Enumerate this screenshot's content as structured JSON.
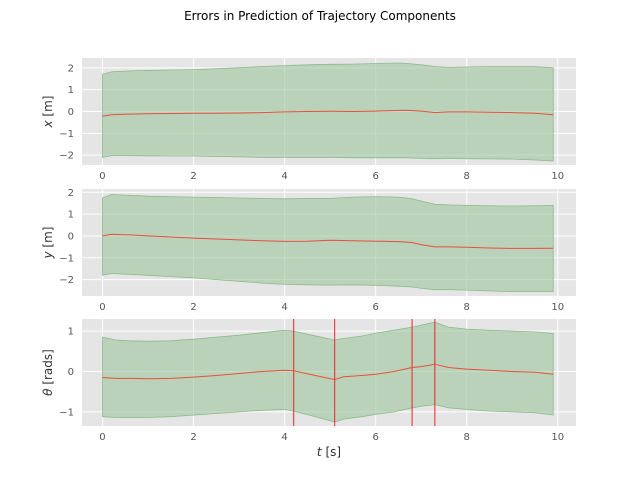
{
  "chart_data": [
    {
      "type": "area",
      "title": "Errors in Prediction of Trajectory Components",
      "ylabel_var": "x",
      "ylabel_unit": " [m]",
      "xlabel": "",
      "xlim": [
        -0.45,
        10.4
      ],
      "ylim": [
        -2.45,
        2.45
      ],
      "xticks": [
        0,
        2,
        4,
        6,
        8,
        10
      ],
      "yticks": [
        -2,
        -1,
        0,
        1,
        2
      ],
      "grid": true,
      "background": "#e5e5e5",
      "band_color": "#9dc59d",
      "line_color": "#e8503a",
      "x": [
        0,
        0.2,
        0.6,
        1.0,
        1.5,
        2.0,
        2.5,
        3.0,
        3.5,
        4.0,
        4.5,
        5.0,
        5.5,
        6.0,
        6.5,
        6.7,
        7.0,
        7.3,
        7.6,
        8.0,
        8.5,
        9.0,
        9.5,
        9.9
      ],
      "mean": [
        -0.22,
        -0.15,
        -0.12,
        -0.1,
        -0.09,
        -0.08,
        -0.08,
        -0.07,
        -0.05,
        -0.02,
        0.0,
        0.01,
        0.0,
        0.02,
        0.05,
        0.06,
        0.02,
        -0.05,
        -0.02,
        -0.02,
        -0.03,
        -0.05,
        -0.08,
        -0.15
      ],
      "upper": [
        1.7,
        1.82,
        1.86,
        1.88,
        1.9,
        1.92,
        1.96,
        2.0,
        2.06,
        2.1,
        2.14,
        2.16,
        2.17,
        2.2,
        2.22,
        2.2,
        2.14,
        2.06,
        2.02,
        2.04,
        2.06,
        2.06,
        2.05,
        2.0
      ],
      "lower": [
        -2.1,
        -2.02,
        -2.02,
        -2.03,
        -2.04,
        -2.04,
        -2.06,
        -2.08,
        -2.1,
        -2.1,
        -2.1,
        -2.1,
        -2.12,
        -2.12,
        -2.12,
        -2.12,
        -2.15,
        -2.16,
        -2.14,
        -2.16,
        -2.17,
        -2.18,
        -2.22,
        -2.26
      ],
      "vlines": []
    },
    {
      "type": "area",
      "title": "",
      "ylabel_var": "y",
      "ylabel_unit": " [m]",
      "xlabel": "",
      "xlim": [
        -0.45,
        10.4
      ],
      "ylim": [
        -2.75,
        2.15
      ],
      "xticks": [
        0,
        2,
        4,
        6,
        8,
        10
      ],
      "yticks": [
        -2,
        -1,
        0,
        1,
        2
      ],
      "grid": true,
      "background": "#e5e5e5",
      "band_color": "#9dc59d",
      "line_color": "#e8503a",
      "x": [
        0,
        0.2,
        0.6,
        1.0,
        1.5,
        2.0,
        2.5,
        3.0,
        3.5,
        4.0,
        4.5,
        5.0,
        5.5,
        6.0,
        6.5,
        6.8,
        7.0,
        7.3,
        7.6,
        8.0,
        8.5,
        9.0,
        9.5,
        9.9
      ],
      "mean": [
        0.0,
        0.08,
        0.05,
        0.0,
        -0.05,
        -0.1,
        -0.14,
        -0.18,
        -0.22,
        -0.25,
        -0.24,
        -0.2,
        -0.22,
        -0.24,
        -0.26,
        -0.3,
        -0.4,
        -0.5,
        -0.5,
        -0.52,
        -0.55,
        -0.57,
        -0.57,
        -0.56
      ],
      "upper": [
        1.75,
        1.9,
        1.86,
        1.82,
        1.8,
        1.78,
        1.76,
        1.74,
        1.72,
        1.7,
        1.72,
        1.72,
        1.78,
        1.8,
        1.78,
        1.7,
        1.6,
        1.45,
        1.42,
        1.4,
        1.38,
        1.37,
        1.38,
        1.4
      ],
      "lower": [
        -1.8,
        -1.72,
        -1.76,
        -1.8,
        -1.86,
        -1.92,
        -2.0,
        -2.08,
        -2.16,
        -2.22,
        -2.24,
        -2.25,
        -2.24,
        -2.26,
        -2.3,
        -2.34,
        -2.4,
        -2.46,
        -2.46,
        -2.48,
        -2.52,
        -2.55,
        -2.55,
        -2.55
      ],
      "vlines": []
    },
    {
      "type": "area",
      "title": "",
      "ylabel_var": "θ",
      "ylabel_unit": " [rads]",
      "xlabel_var": "t",
      "xlabel_unit": " [s]",
      "xlim": [
        -0.45,
        10.4
      ],
      "ylim": [
        -1.35,
        1.3
      ],
      "xticks": [
        0,
        2,
        4,
        6,
        8,
        10
      ],
      "yticks": [
        -1,
        0,
        1
      ],
      "grid": true,
      "background": "#e5e5e5",
      "band_color": "#9dc59d",
      "line_color": "#e8503a",
      "x": [
        0,
        0.3,
        0.6,
        1.0,
        1.5,
        2.0,
        2.5,
        3.0,
        3.5,
        4.0,
        4.2,
        4.6,
        5.1,
        5.3,
        5.7,
        6.0,
        6.4,
        6.8,
        7.0,
        7.3,
        7.6,
        8.0,
        8.5,
        9.0,
        9.5,
        9.9
      ],
      "mean": [
        -0.15,
        -0.17,
        -0.17,
        -0.18,
        -0.17,
        -0.14,
        -0.1,
        -0.05,
        0.0,
        0.03,
        0.02,
        -0.08,
        -0.2,
        -0.13,
        -0.1,
        -0.07,
        0.0,
        0.1,
        0.12,
        0.18,
        0.1,
        0.06,
        0.03,
        0.0,
        -0.02,
        -0.07
      ],
      "upper": [
        0.85,
        0.78,
        0.76,
        0.75,
        0.76,
        0.8,
        0.85,
        0.9,
        0.96,
        1.02,
        1.0,
        0.9,
        0.78,
        0.82,
        0.88,
        0.95,
        1.02,
        1.1,
        1.15,
        1.22,
        1.1,
        1.05,
        1.02,
        1.0,
        0.98,
        0.94
      ],
      "lower": [
        -1.12,
        -1.14,
        -1.14,
        -1.14,
        -1.12,
        -1.08,
        -1.04,
        -1.0,
        -0.96,
        -0.94,
        -0.98,
        -1.1,
        -1.25,
        -1.18,
        -1.12,
        -1.06,
        -1.0,
        -0.9,
        -0.86,
        -0.82,
        -0.9,
        -0.94,
        -0.98,
        -1.0,
        -1.02,
        -1.08
      ],
      "vlines": [
        4.2,
        5.1,
        6.8,
        7.3
      ]
    }
  ]
}
